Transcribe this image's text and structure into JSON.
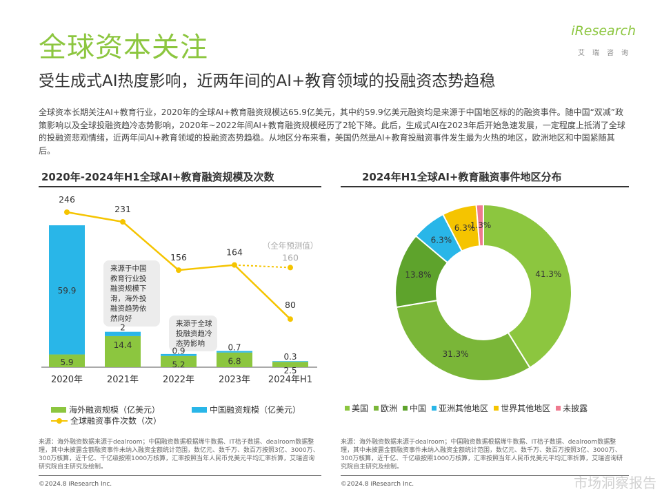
{
  "header": {
    "title": "全球资本关注",
    "subtitle": "受生成式AI热度影响，近两年间的AI+教育领域的投融资态势趋稳",
    "logo_text": "iResearch",
    "logo_sub": "艾瑞咨询"
  },
  "intro": "全球资本长期关注AI+教育行业，2020年的全球AI+教育融资规模达65.9亿美元，其中约59.9亿美元融资均是来源于中国地区标的的融资事件。随中国“双减”政策影响以及全球投融资趋冷态势影响，2020年~2022年间AI+教育融资规模经历了2轮下降。此后，生成式AI在2023年后开始急速发展，一定程度上抵消了全球的投融资悲观情绪，近两年间AI+教育领域的投融资态势趋稳。从地区分布来看，美国仍然是AI+教育投融资事件发生最为火热的地区，欧洲地区和中国紧随其后。",
  "chart_data": [
    {
      "type": "bar",
      "title": "2020年-2024年H1全球AI+教育融资规模及次数",
      "categories": [
        "2020年",
        "2021年",
        "2022年",
        "2023年",
        "2024年H1"
      ],
      "series": [
        {
          "name": "海外融资规模（亿美元）",
          "kind": "stacked-bar",
          "color": "#8cc63f",
          "values": [
            5.9,
            14.4,
            5.2,
            6.8,
            2.5
          ]
        },
        {
          "name": "中国融资规模（亿美元）",
          "kind": "stacked-bar",
          "color": "#29b6e8",
          "values": [
            59.9,
            2.0,
            0.9,
            0.7,
            0.3
          ]
        },
        {
          "name": "全球融资事件次数（次）",
          "kind": "line",
          "color": "#f5c400",
          "values": [
            246,
            231,
            156,
            164,
            80
          ]
        }
      ],
      "forecast": {
        "category": "2024年H1",
        "value": 160,
        "label": "（全年预测值）"
      },
      "annotations": [
        "来源于中国教育行业投融资规模下滑，海外投融资趋势依然向好",
        "来源于全球投融资趋冷态势影响"
      ]
    },
    {
      "type": "pie",
      "title": "2024年H1全球AI+教育融资事件地区分布",
      "slices": [
        {
          "label": "美国",
          "value": 41.3,
          "color": "#8cc63f"
        },
        {
          "label": "欧洲",
          "value": 31.3,
          "color": "#7ab638"
        },
        {
          "label": "中国",
          "value": 13.8,
          "color": "#5ea32c"
        },
        {
          "label": "亚洲其他地区",
          "value": 6.3,
          "color": "#29b6e8"
        },
        {
          "label": "世界其他地区",
          "value": 6.3,
          "color": "#f5c400"
        },
        {
          "label": "未披露",
          "value": 1.3,
          "color": "#ef7a8f"
        }
      ]
    }
  ],
  "footer": {
    "source_left": "来源：海外融资数据来源于dealroom；中国融资数据根据烯牛数据、IT桔子数据、dealroom数据整理，其中未披露金额融资事件未纳入融资金额统计范围，数亿元、数千万、数百万按照3亿、3000万、300万核算，近千亿、千亿级按照1000万核算，汇率按照当年人民币兑美元平均汇率折算，艾瑞咨询研究院自主研究及绘制。",
    "source_right": "来源：海外融资数据来源于dealroom；中国融资数据根据烯牛数据、IT桔子数据、dealroom数据整理，其中未披露金额融资事件未纳入融资金额统计范围，数亿元、数千万、数百万按照3亿、3000万、300万核算，近千亿、千亿级按照1000万核算，汇率按照当年人民币兑美元平均汇率折算，艾瑞咨询研究院自主研究及绘制。",
    "copyright": "©2024.8 iResearch Inc.",
    "watermark": "市场洞察报告"
  }
}
